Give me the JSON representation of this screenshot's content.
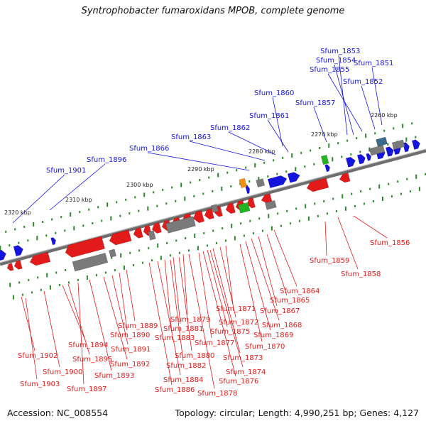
{
  "title": "Syntrophobacter fumaroxidans MPOB, complete genome",
  "footer": {
    "accession": "Accession: NC_008554",
    "topology": "Topology: circular; Length: 4,990,251 bp; Genes: 4,127"
  },
  "colors": {
    "forward_strand": "#1414dc",
    "reverse_strand": "#e21a1a",
    "rna": "#22b422",
    "pseudo": "#7a7a7a",
    "other": "#f0900c",
    "backbone": "#6e6e6e",
    "tick": "#2a8a2a"
  },
  "kbp_ticks": [
    "2320 kbp",
    "2310 kbp",
    "2300 kbp",
    "2290 kbp",
    "2280 kbp",
    "2270 kbp",
    "2260 kbp"
  ],
  "forward_labels": [
    "Sfum_1853",
    "Sfum_1854",
    "Sfum_1855",
    "Sfum_1851",
    "Sfum_1852",
    "Sfum_1860",
    "Sfum_1857",
    "Sfum_1861",
    "Sfum_1862",
    "Sfum_1863",
    "Sfum_1866",
    "Sfum_1896",
    "Sfum_1901"
  ],
  "reverse_labels": [
    "Sfum_1856",
    "Sfum_1859",
    "Sfum_1858",
    "Sfum_1864",
    "Sfum_1865",
    "Sfum_1867",
    "Sfum_1868",
    "Sfum_1869",
    "Sfum_1870",
    "Sfum_1871",
    "Sfum_1872",
    "Sfum_1873",
    "Sfum_1874",
    "Sfum_1875",
    "Sfum_1876",
    "Sfum_1877",
    "Sfum_1878",
    "Sfum_1879",
    "Sfum_1880",
    "Sfum_1881",
    "Sfum_1882",
    "Sfum_1883",
    "Sfum_1884",
    "Sfum_1886",
    "Sfum_1889",
    "Sfum_1890",
    "Sfum_1891",
    "Sfum_1892",
    "Sfum_1893",
    "Sfum_1894",
    "Sfum_1895",
    "Sfum_1897",
    "Sfum_1900",
    "Sfum_1902",
    "Sfum_1903"
  ]
}
